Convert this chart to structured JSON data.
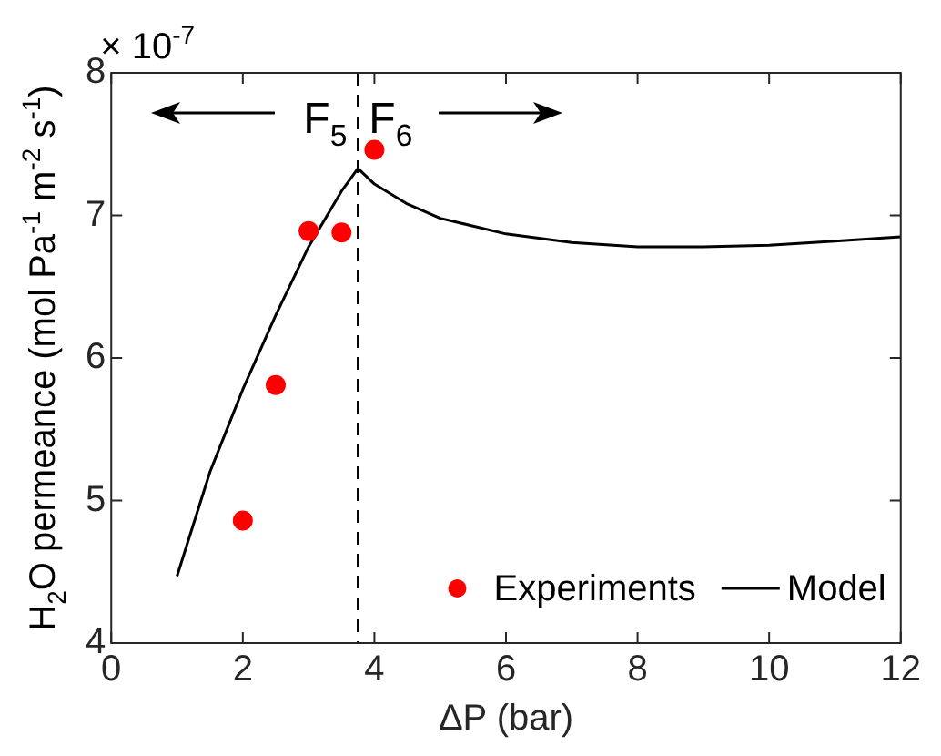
{
  "chart_data": {
    "type": "scatter",
    "xlabel": "ΔP (bar)",
    "ylabel": "H$_{2}$O permeance (mol Pa$^{-1}$ m$^{-2}$ s$^{-1}$)",
    "series": [
      {
        "name": "Experiments",
        "type": "scatter",
        "color": "#ff0000",
        "marker": "circle",
        "x": [
          2,
          2.5,
          3,
          3.5,
          4
        ],
        "values": [
          4.86,
          5.81,
          6.89,
          6.88,
          7.46
        ]
      },
      {
        "name": "Model",
        "type": "line",
        "color": "#000000",
        "marker": "none",
        "line_style": "solid",
        "x": [
          1,
          1.5,
          2,
          2.5,
          3,
          3.5,
          3.75,
          4,
          4.5,
          5,
          6,
          7,
          8,
          9,
          10,
          11,
          12
        ],
        "values": [
          4.47,
          5.2,
          5.78,
          6.3,
          6.78,
          7.17,
          7.33,
          7.22,
          7.08,
          6.98,
          6.87,
          6.81,
          6.78,
          6.78,
          6.79,
          6.82,
          6.85
        ]
      }
    ],
    "xlim": [
      0,
      12
    ],
    "xticks": [
      0,
      2,
      4,
      6,
      8,
      10,
      12
    ],
    "ylim": [
      4,
      8
    ],
    "yticks": [
      4,
      5,
      6,
      7,
      8
    ],
    "ref_lines": [
      {
        "axis": "x",
        "value": 3.75,
        "color": "#000000",
        "line_style": "dashed"
      }
    ],
    "annotations": [
      "× 10$^{-7}$",
      "F$_{5}$",
      "F$_{6}$"
    ],
    "grid": false,
    "legend": "bottom right"
  }
}
